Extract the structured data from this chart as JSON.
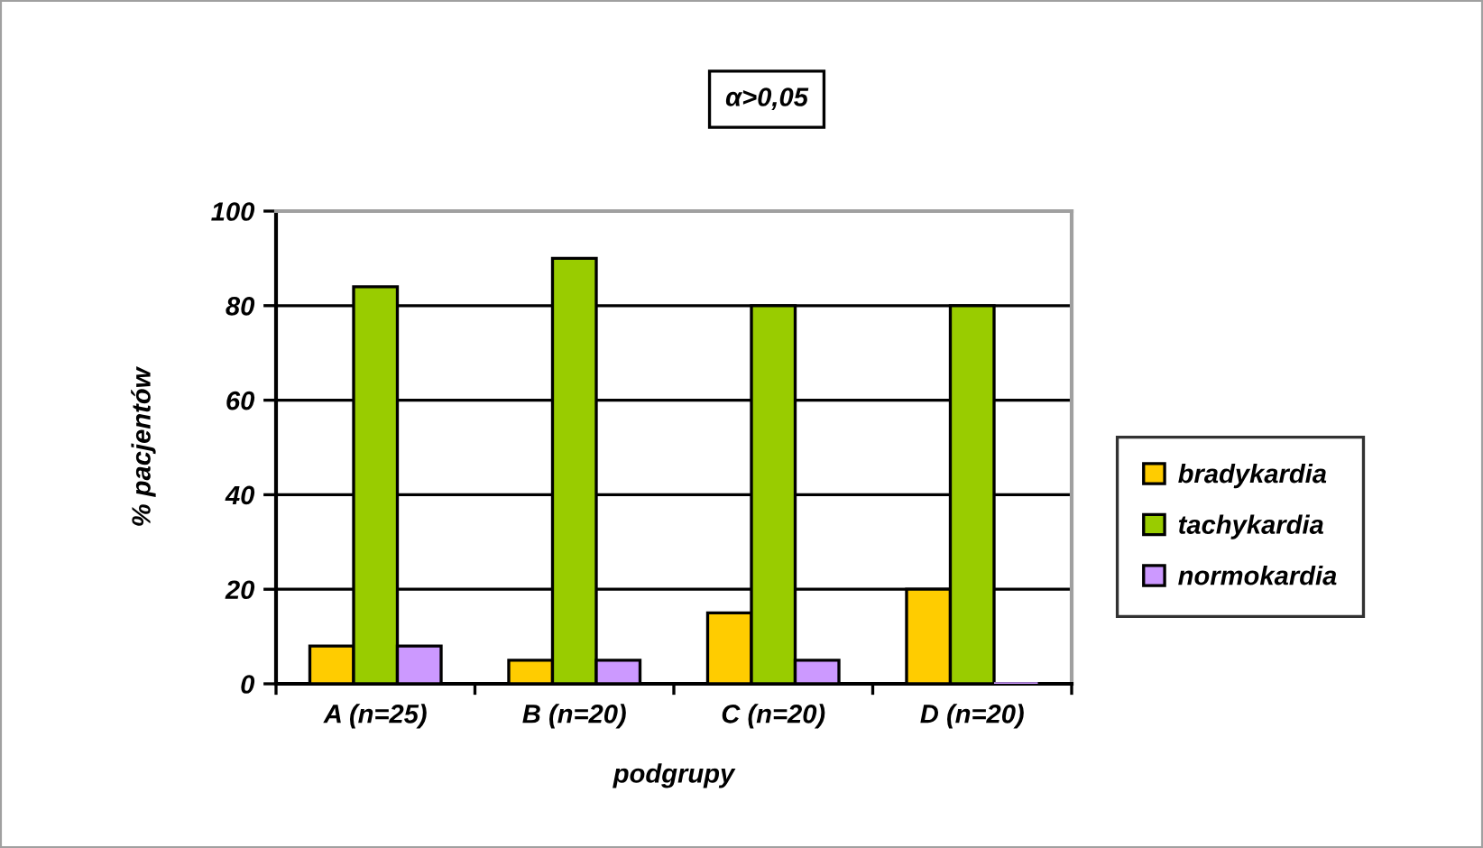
{
  "chart_data": {
    "type": "bar",
    "title": "α>0,05",
    "xlabel": "podgrupy",
    "ylabel": "% pacjentów",
    "categories": [
      "A (n=25)",
      "B (n=20)",
      "C (n=20)",
      "D (n=20)"
    ],
    "series": [
      {
        "name": "bradykardia",
        "color": "#ffcc00",
        "values": [
          8,
          5,
          15,
          20
        ]
      },
      {
        "name": "tachykardia",
        "color": "#99cc00",
        "values": [
          84,
          90,
          80,
          80
        ]
      },
      {
        "name": "normokardia",
        "color": "#cc99ff",
        "values": [
          8,
          5,
          5,
          0
        ]
      }
    ],
    "ylim": [
      0,
      100
    ],
    "yticks": [
      0,
      20,
      40,
      60,
      80,
      100
    ],
    "grid": "y",
    "legend": "right"
  }
}
